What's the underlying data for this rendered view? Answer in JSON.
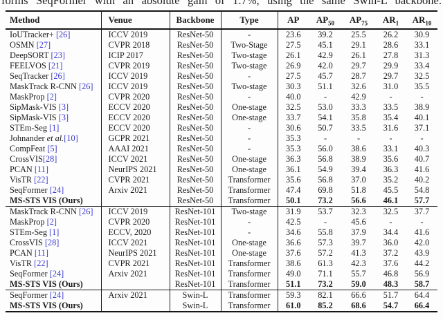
{
  "caption": "forms SeqFormer with an absolute gain of 1.7%, using the same Swin-L backbone.",
  "colors": {
    "citation_link": "#3a3ad0",
    "rule": "#151515",
    "text": "#1c1c1c"
  },
  "table": {
    "headers": [
      {
        "t": "Method"
      },
      {
        "t": "Venue"
      },
      {
        "t": "Backbone"
      },
      {
        "t": "Type"
      },
      {
        "t": "AP",
        "sub": ""
      },
      {
        "t": "AP",
        "sub": "50"
      },
      {
        "t": "AP",
        "sub": "75"
      },
      {
        "t": "AR",
        "sub": "1"
      },
      {
        "t": "AR",
        "sub": "10"
      }
    ],
    "sections": [
      {
        "rows": [
          {
            "m1": "IoUTracker+ ",
            "m2": "",
            "cite": "[26]",
            "venue": "ICCV 2019",
            "backbone": "ResNet-50",
            "type": "-",
            "ap": "23.6",
            "ap50": "39.2",
            "ap75": "25.5",
            "ar1": "26.2",
            "ar10": "30.9",
            "bold": false
          },
          {
            "m1": "OSMN ",
            "m2": "",
            "cite": "[27]",
            "venue": "CVPR 2018",
            "backbone": "ResNet-50",
            "type": "Two-Stage",
            "ap": "27.5",
            "ap50": "45.1",
            "ap75": "29.1",
            "ar1": "28.6",
            "ar10": "33.1",
            "bold": false
          },
          {
            "m1": "DeepSORT ",
            "m2": "",
            "cite": "[23]",
            "venue": "ICIP 2017",
            "backbone": "ResNet-50",
            "type": "Two-stage",
            "ap": "26.1",
            "ap50": "42.9",
            "ap75": "26.1",
            "ar1": "27.8",
            "ar10": "31.3",
            "bold": false
          },
          {
            "m1": "FEELVOS ",
            "m2": "",
            "cite": "[21]",
            "venue": "CVPR 2019",
            "backbone": "ResNet-50",
            "type": "Two-stage",
            "ap": "26.9",
            "ap50": "42.0",
            "ap75": "29.7",
            "ar1": "29.9",
            "ar10": "33.4",
            "bold": false
          },
          {
            "m1": "SeqTracker ",
            "m2": "",
            "cite": "[26]",
            "venue": "ICCV 2019",
            "backbone": "ResNet-50",
            "type": "-",
            "ap": "27.5",
            "ap50": "45.7",
            "ap75": "28.7",
            "ar1": "29.7",
            "ar10": "32.5",
            "bold": false
          },
          {
            "m1": "MaskTrack R-CNN ",
            "m2": "",
            "cite": "[26]",
            "venue": "ICCV 2019",
            "backbone": "ResNet-50",
            "type": "Two-stage",
            "ap": "30.3",
            "ap50": "51.1",
            "ap75": "32.6",
            "ar1": "31.0",
            "ar10": "35.5",
            "bold": false
          },
          {
            "m1": "MaskProp ",
            "m2": "",
            "cite": "[2]",
            "venue": "CVPR 2020",
            "backbone": "ResNet-50",
            "type": "-",
            "ap": "40.0",
            "ap50": "-",
            "ap75": "42.9",
            "ar1": "-",
            "ar10": "-",
            "bold": false
          },
          {
            "m1": "SipMask-VIS ",
            "m2": "",
            "cite": "[3]",
            "venue": "ECCV 2020",
            "backbone": "ResNet-50",
            "type": "One-stage",
            "ap": "32.5",
            "ap50": "53.0",
            "ap75": "33.3",
            "ar1": "33.5",
            "ar10": "38.9",
            "bold": false
          },
          {
            "m1": "SipMask-VIS ",
            "m2": "",
            "cite": "[3]",
            "venue": "ECCV 2020",
            "backbone": "ResNet-50",
            "type": "One-stage",
            "ap": "33.7",
            "ap50": "54.1",
            "ap75": "35.8",
            "ar1": "35.4",
            "ar10": "40.1",
            "bold": false
          },
          {
            "m1": "STEm-Seg ",
            "m2": "",
            "cite": "[1]",
            "venue": "ECCV 2020",
            "backbone": "ResNet-50",
            "type": "-",
            "ap": "30.6",
            "ap50": "50.7",
            "ap75": "33.5",
            "ar1": "31.6",
            "ar10": "37.1",
            "bold": false
          },
          {
            "m1": "Johnander ",
            "m2": "et al.",
            "cite": "[10]",
            "venue": "GCPR 2021",
            "backbone": "ResNet-50",
            "type": "-",
            "ap": "35.3",
            "ap50": "-",
            "ap75": "-",
            "ar1": "-",
            "ar10": "-",
            "bold": false
          },
          {
            "m1": "CompFeat ",
            "m2": "",
            "cite": "[5]",
            "venue": "AAAI 2021",
            "backbone": "ResNet-50",
            "type": "-",
            "ap": "35.3",
            "ap50": "56.0",
            "ap75": "38.6",
            "ar1": "33.1",
            "ar10": "40.3",
            "bold": false
          },
          {
            "m1": "CrossVIS",
            "m2": "",
            "cite": "[28]",
            "venue": "ICCV 2021",
            "backbone": "ResNet-50",
            "type": "One-stage",
            "ap": "36.3",
            "ap50": "56.8",
            "ap75": "38.9",
            "ar1": "35.6",
            "ar10": "40.7",
            "bold": false
          },
          {
            "m1": "PCAN ",
            "m2": "",
            "cite": "[11]",
            "venue": "NeurIPS 2021",
            "backbone": "ResNet-50",
            "type": "One-stage",
            "ap": "36.1",
            "ap50": "54.9",
            "ap75": "39.4",
            "ar1": "36.3",
            "ar10": "41.6",
            "bold": false
          },
          {
            "m1": "VisTR ",
            "m2": "",
            "cite": "[22]",
            "venue": "CVPR 2021",
            "backbone": "ResNet-50",
            "type": "Transformer",
            "ap": "35.6",
            "ap50": "56.8",
            "ap75": "37.0",
            "ar1": "35.2",
            "ar10": "40.2",
            "bold": false
          },
          {
            "m1": "SeqFormer ",
            "m2": "",
            "cite": "[24]",
            "venue": "Arxiv 2021",
            "backbone": "ResNet-50",
            "type": "Transformer",
            "ap": "47.4",
            "ap50": "69.8",
            "ap75": "51.8",
            "ar1": "45.5",
            "ar10": "54.8",
            "bold": false
          },
          {
            "m1": "MS-STS VIS (Ours)",
            "m2": "",
            "cite": "",
            "venue": "",
            "backbone": "ResNet-50",
            "type": "Transformer",
            "ap": "50.1",
            "ap50": "73.2",
            "ap75": "56.6",
            "ar1": "46.1",
            "ar10": "57.7",
            "bold": true
          }
        ]
      },
      {
        "rows": [
          {
            "m1": "MaskTrack R-CNN ",
            "m2": "",
            "cite": "[26]",
            "venue": "ICCV 2019",
            "backbone": "ResNet-101",
            "type": "Two-stage",
            "ap": "31.9",
            "ap50": "53.7",
            "ap75": "32.3",
            "ar1": "32.5",
            "ar10": "37.7",
            "bold": false
          },
          {
            "m1": "MaskProp ",
            "m2": "",
            "cite": "[2]",
            "venue": "CVPR 2020",
            "backbone": "ResNet-101",
            "type": "-",
            "ap": "42.5",
            "ap50": "-",
            "ap75": "45.6",
            "ar1": "-",
            "ar10": "-",
            "bold": false
          },
          {
            "m1": "STEm-Seg ",
            "m2": "",
            "cite": "[1]",
            "venue": "ECCV, 2020",
            "backbone": "ResNet-101",
            "type": "-",
            "ap": "34.6",
            "ap50": "55.8",
            "ap75": "37.9",
            "ar1": "34.4",
            "ar10": "41.6",
            "bold": false
          },
          {
            "m1": "CrossVIS ",
            "m2": "",
            "cite": "[28]",
            "venue": "ICCV 2021",
            "backbone": "ResNet-101",
            "type": "One-stage",
            "ap": "36.6",
            "ap50": "57.3",
            "ap75": "39.7",
            "ar1": "36.0",
            "ar10": "42.0",
            "bold": false
          },
          {
            "m1": "PCAN ",
            "m2": "",
            "cite": "[11]",
            "venue": "NeurIPS 2021",
            "backbone": "ResNet-101",
            "type": "One-stage",
            "ap": "37.6",
            "ap50": "57.2",
            "ap75": "41.3",
            "ar1": "37.2",
            "ar10": "43.9",
            "bold": false
          },
          {
            "m1": "VisTR ",
            "m2": "",
            "cite": "[22]",
            "venue": "CVPR 2021",
            "backbone": "ResNet-101",
            "type": "Transformer",
            "ap": "38.6",
            "ap50": "61.3",
            "ap75": "42.3",
            "ar1": "37.6",
            "ar10": "44.2",
            "bold": false
          },
          {
            "m1": "SeqFormer ",
            "m2": "",
            "cite": "[24]",
            "venue": "Arxiv 2021",
            "backbone": "ResNet-101",
            "type": "Transformer",
            "ap": "49.0",
            "ap50": "71.1",
            "ap75": "55.7",
            "ar1": "46.8",
            "ar10": "56.9",
            "bold": false
          },
          {
            "m1": "MS-STS VIS (Ours)",
            "m2": "",
            "cite": "",
            "venue": "",
            "backbone": "ResNet-101",
            "type": "Transformer",
            "ap": "51.1",
            "ap50": "73.2",
            "ap75": "59.0",
            "ar1": "48.3",
            "ar10": "58.7",
            "bold": true
          }
        ]
      },
      {
        "rows": [
          {
            "m1": "SeqFormer ",
            "m2": "",
            "cite": "[24]",
            "venue": "Arxiv 2021",
            "backbone": "Swin-L",
            "type": "Transformer",
            "ap": "59.3",
            "ap50": "82.1",
            "ap75": "66.6",
            "ar1": "51.7",
            "ar10": "64.4",
            "bold": false
          },
          {
            "m1": "MS-STS VIS (Ours)",
            "m2": "",
            "cite": "",
            "venue": "",
            "backbone": "Swin-L",
            "type": "Transformer",
            "ap": "61.0",
            "ap50": "85.2",
            "ap75": "68.6",
            "ar1": "54.7",
            "ar10": "66.4",
            "bold": true
          }
        ]
      }
    ]
  }
}
